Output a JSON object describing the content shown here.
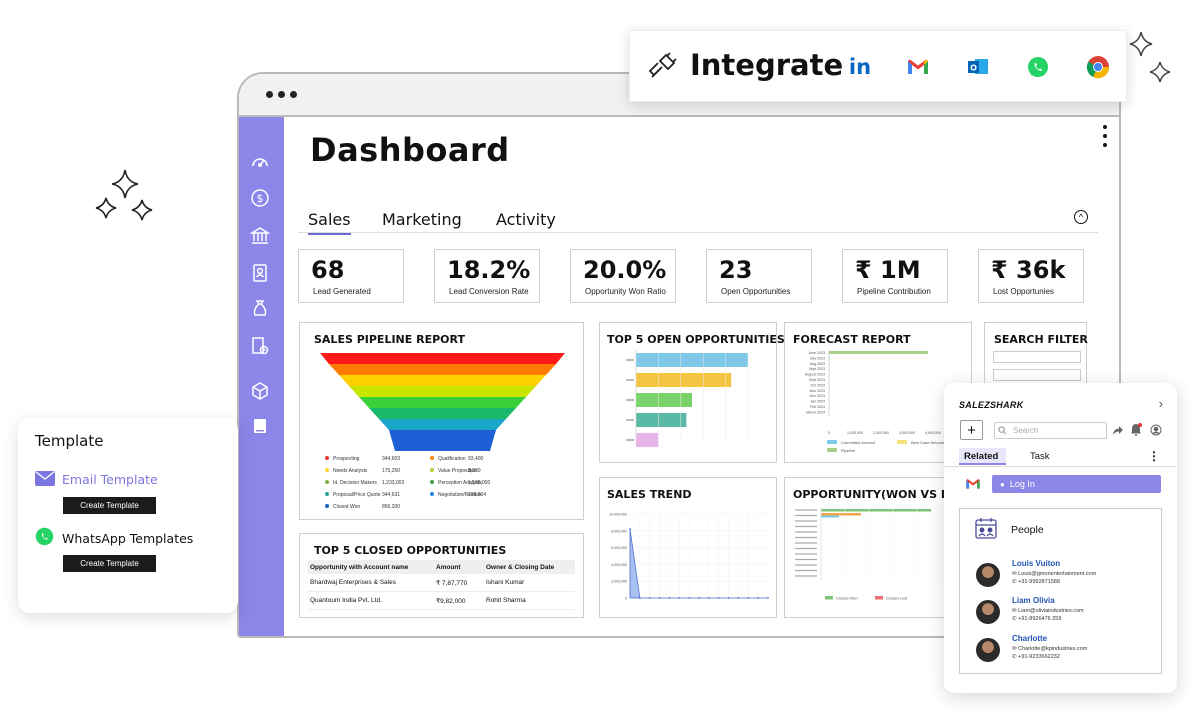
{
  "integrate": {
    "label": "Integrate",
    "brands": [
      "linkedin-icon",
      "gmail-icon",
      "outlook-icon",
      "whatsapp-icon",
      "chrome-icon"
    ],
    "linkedin_text": "in"
  },
  "dashboard": {
    "title": "Dashboard",
    "tabs": [
      "Sales",
      "Marketing",
      "Activity"
    ],
    "kpis": [
      {
        "value": "68",
        "label": "Lead Generated"
      },
      {
        "value": "18.2%",
        "label": "Lead Conversion Rate"
      },
      {
        "value": "20.0%",
        "label": "Opportunity Won Ratio"
      },
      {
        "value": "23",
        "label": "Open Opportunities"
      },
      {
        "value": "₹ 1M",
        "label": "Pipeline Contribution"
      },
      {
        "value": "₹ 36k",
        "label": "Lost Opportunies"
      }
    ],
    "panels": {
      "pipeline": "SALES PIPELINE REPORT",
      "top5open": "TOP 5 OPEN OPPORTUNITIES",
      "forecast": "FORECAST REPORT",
      "search": "SEARCH FILTER",
      "trend": "SALES TREND",
      "wonlost": "OPPORTUNITY(WON VS LOSS",
      "closed": "TOP 5 CLOSED OPPORTUNITIES"
    },
    "pipeline_legend": [
      {
        "name": "Prospecting",
        "value": "344,603",
        "color": "#e53935"
      },
      {
        "name": "Qualification",
        "value": "93,400",
        "color": "#fb8c00"
      },
      {
        "name": "Needs Analysis",
        "value": "175,250",
        "color": "#fdd835"
      },
      {
        "name": "Value Proposition",
        "value": "3,000",
        "color": "#c0ca33"
      },
      {
        "name": "Id. Decision Makers",
        "value": "1,233,003",
        "color": "#7cb342"
      },
      {
        "name": "Perception Analysis",
        "value": "1,188,000",
        "color": "#43a047"
      },
      {
        "name": "Proposal/Price Quote",
        "value": "344,631",
        "color": "#26a69a"
      },
      {
        "name": "Negotiation/Review",
        "value": "236,004",
        "color": "#1e88e5"
      },
      {
        "name": "Closed Won",
        "value": "856,200",
        "color": "#1565c0"
      }
    ],
    "closed_table": {
      "headers": [
        "Opportunity with Account name",
        "Amount",
        "Owner & Closing Date"
      ],
      "rows": [
        [
          "Bhardwaj Enterprises & Sales",
          "₹ 7,87,770",
          "Ishani Kumar"
        ],
        [
          "Quantoum India Pvt. Ltd.",
          "₹9,82,000",
          "Rohit Sharma"
        ]
      ]
    }
  },
  "chart_data": [
    {
      "type": "bar",
      "title": "TOP 5 OPEN OPPORTUNITIES",
      "orientation": "horizontal",
      "values": [
        100,
        85,
        50,
        45,
        20
      ],
      "colors": [
        "#7ec8e8",
        "#f5c542",
        "#7bd36b",
        "#5ab9a6",
        "#e9b4e9"
      ]
    },
    {
      "type": "bar",
      "title": "FORECAST REPORT",
      "orientation": "horizontal",
      "x_ticks": [
        "0",
        "1,000,000",
        "2,000,000",
        "3,000,000",
        "4,000,000",
        "5,000,000"
      ],
      "values": [
        3800000,
        20000,
        10000,
        0,
        0,
        0,
        0,
        0,
        0,
        0,
        0,
        0
      ],
      "legend": [
        "Committed Amount",
        "Best Case Amount",
        "Pipeline"
      ]
    },
    {
      "type": "area",
      "title": "SALES TREND",
      "y_ticks": [
        "0",
        "2,000,000",
        "4,000,000",
        "6,000,000",
        "8,000,000",
        "10,000,000"
      ],
      "values": [
        8200000,
        0,
        0,
        0,
        0,
        0,
        0,
        0,
        0,
        0,
        0,
        0,
        0,
        0,
        0
      ]
    },
    {
      "type": "bar",
      "title": "OPPORTUNITY(WON VS LOSS",
      "orientation": "horizontal",
      "legend": [
        "Closed Won",
        "Closed Lost"
      ]
    }
  ],
  "sidebar": {
    "icons": [
      "dashboard-gauge-icon",
      "dollar-icon",
      "bank-icon",
      "contacts-icon",
      "money-bag-icon",
      "report-icon",
      "box-icon",
      "book-icon"
    ]
  },
  "template": {
    "title": "Template",
    "email_label": "Email Template",
    "whatsapp_label": "WhatsApp Templates",
    "create_label": "Create Template"
  },
  "crm": {
    "logo": "SALEZSHARK",
    "plus": "+",
    "search_placeholder": "Search",
    "tabs": [
      "Related",
      "Task"
    ],
    "login_label": "Log In",
    "people_title": "People",
    "contacts": [
      {
        "name": "Louis Vuiton",
        "email": "Louis@gmonentertainment.com",
        "phone": "+91-9992871588"
      },
      {
        "name": "Liam Olivia",
        "email": "Liam@oliviaindustries.com",
        "phone": "+91-8926476 259"
      },
      {
        "name": "Charlotte",
        "email": "Charlotte@kpindustries.com",
        "phone": "+91-9233662232"
      }
    ]
  }
}
